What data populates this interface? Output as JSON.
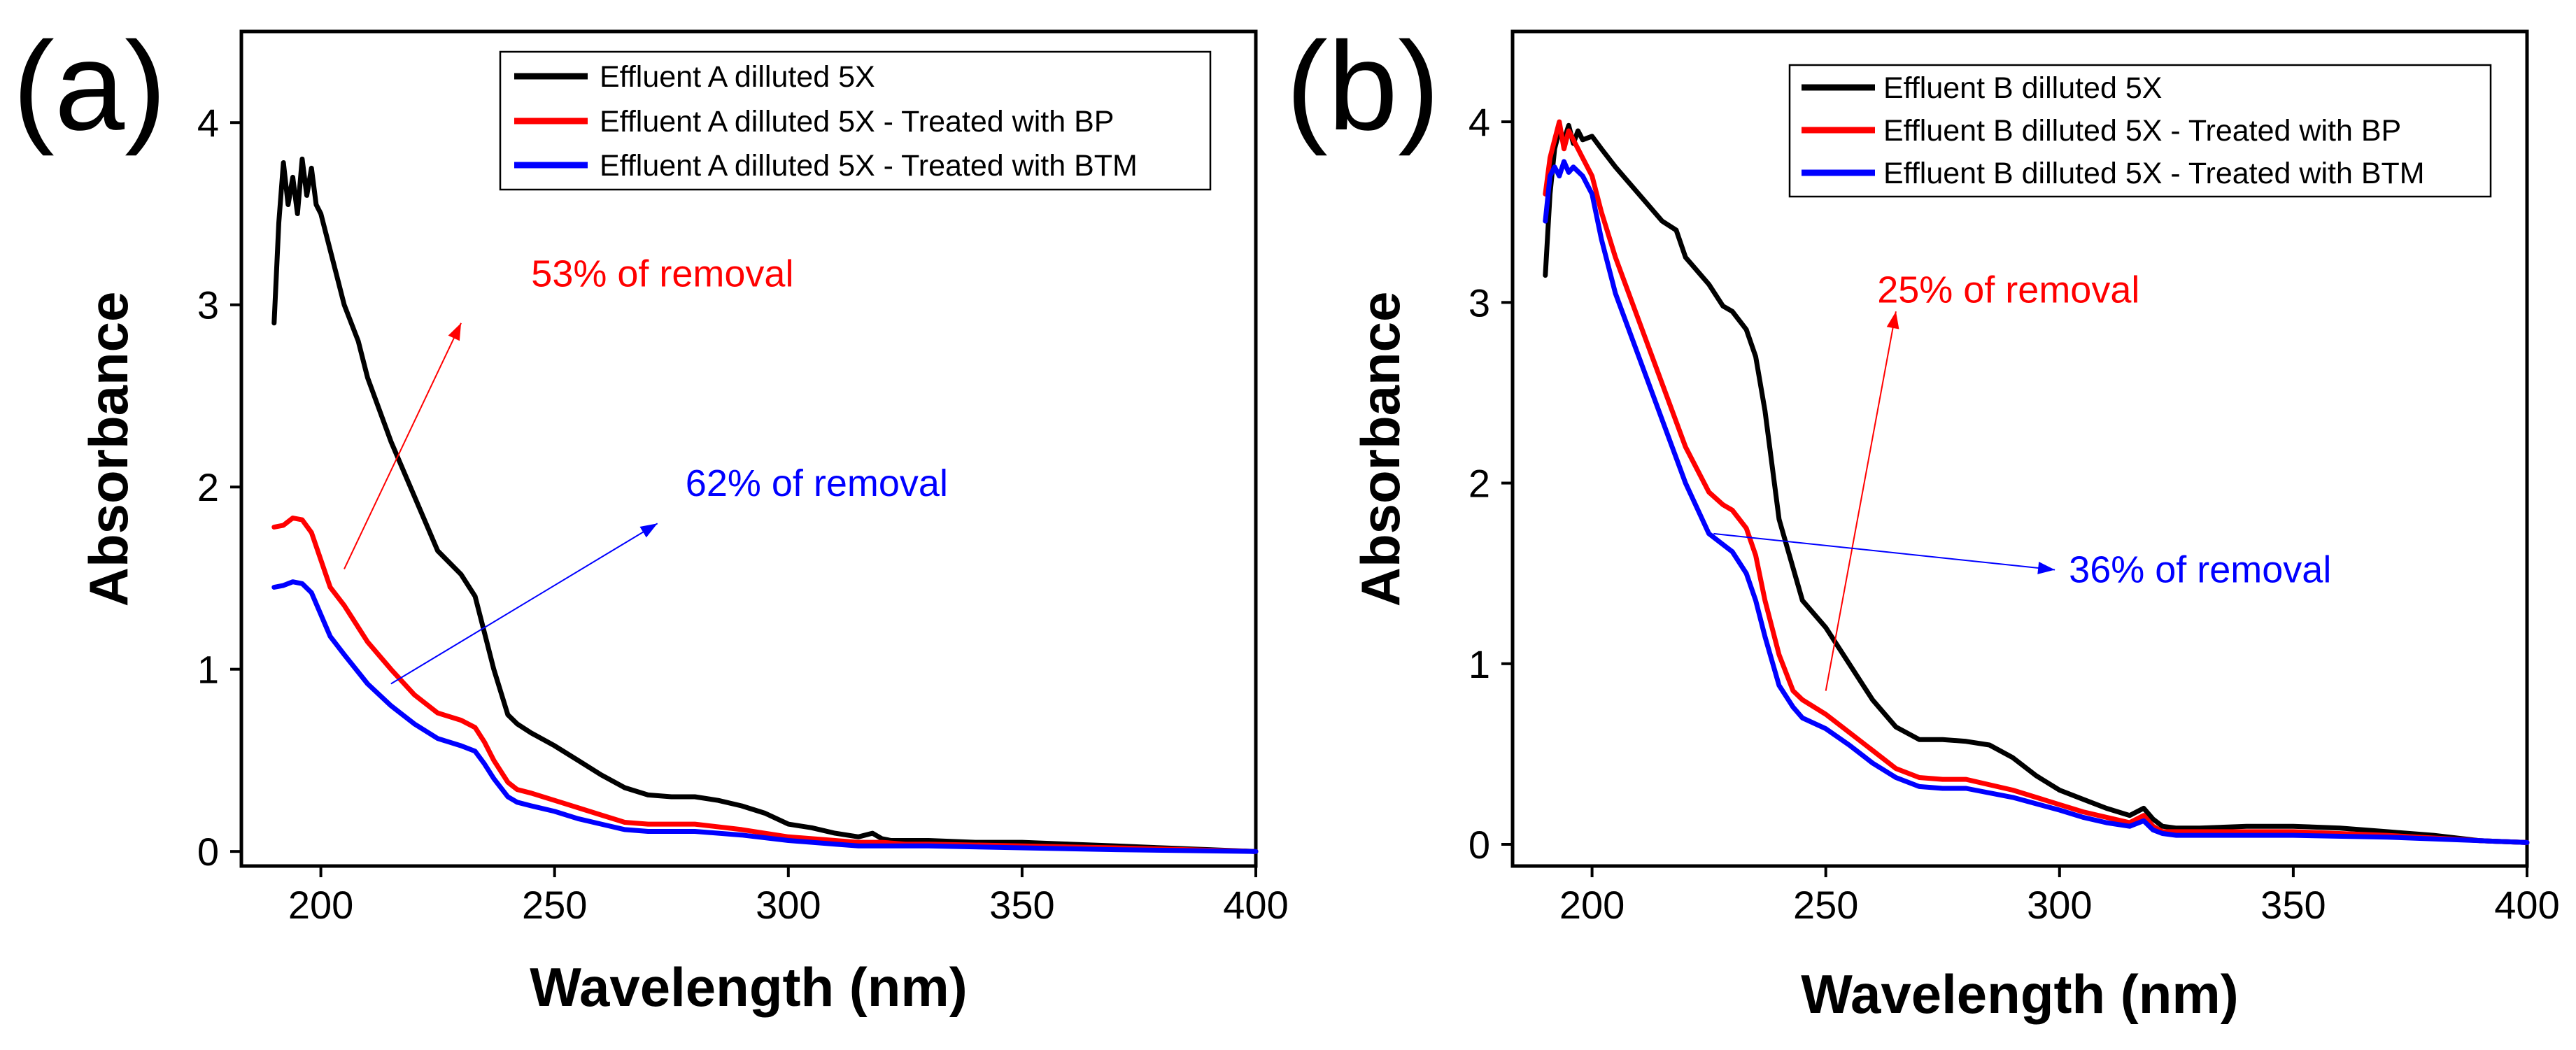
{
  "chart_data": [
    {
      "type": "line",
      "panel_label": "(a)",
      "xlabel": "Wavelength (nm)",
      "ylabel": "Absorbance",
      "xlim": [
        183,
        400
      ],
      "ylim": [
        -0.08,
        4.5
      ],
      "xticks": [
        200,
        250,
        300,
        350,
        400
      ],
      "yticks": [
        0,
        1,
        2,
        3,
        4
      ],
      "legend_position": "top-right",
      "series": [
        {
          "name": "Effluent A dilluted 5X",
          "color": "#000000",
          "x": [
            190,
            191,
            192,
            193,
            194,
            195,
            196,
            197,
            198,
            199,
            200,
            202,
            205,
            208,
            210,
            215,
            220,
            225,
            230,
            233,
            235,
            237,
            240,
            242,
            245,
            250,
            255,
            260,
            265,
            270,
            275,
            280,
            285,
            290,
            295,
            300,
            305,
            310,
            315,
            318,
            320,
            322,
            325,
            330,
            340,
            350,
            360,
            370,
            380,
            390,
            400
          ],
          "y": [
            2.9,
            3.45,
            3.78,
            3.55,
            3.7,
            3.5,
            3.8,
            3.6,
            3.75,
            3.55,
            3.5,
            3.3,
            3.0,
            2.8,
            2.6,
            2.25,
            1.95,
            1.65,
            1.52,
            1.4,
            1.2,
            1.0,
            0.75,
            0.7,
            0.65,
            0.58,
            0.5,
            0.42,
            0.35,
            0.31,
            0.3,
            0.3,
            0.28,
            0.25,
            0.21,
            0.15,
            0.13,
            0.1,
            0.08,
            0.1,
            0.07,
            0.06,
            0.06,
            0.06,
            0.05,
            0.05,
            0.04,
            0.03,
            0.02,
            0.01,
            0.0
          ]
        },
        {
          "name": "Effluent A dilluted 5X - Treated with BP",
          "color": "#ff0000",
          "x": [
            190,
            192,
            194,
            196,
            198,
            200,
            202,
            205,
            210,
            215,
            220,
            225,
            230,
            233,
            235,
            237,
            240,
            242,
            245,
            250,
            255,
            260,
            265,
            270,
            275,
            280,
            290,
            300,
            310,
            315,
            320,
            325,
            330,
            350,
            370,
            400
          ],
          "y": [
            1.78,
            1.79,
            1.83,
            1.82,
            1.75,
            1.6,
            1.45,
            1.35,
            1.15,
            1.0,
            0.86,
            0.76,
            0.72,
            0.68,
            0.6,
            0.5,
            0.38,
            0.34,
            0.32,
            0.28,
            0.24,
            0.2,
            0.16,
            0.15,
            0.15,
            0.15,
            0.12,
            0.08,
            0.06,
            0.05,
            0.05,
            0.04,
            0.04,
            0.03,
            0.02,
            0.0
          ]
        },
        {
          "name": "Effluent A dilluted 5X - Treated with BTM",
          "color": "#0000ff",
          "x": [
            190,
            192,
            194,
            196,
            198,
            200,
            202,
            205,
            210,
            215,
            220,
            225,
            230,
            233,
            235,
            237,
            240,
            242,
            245,
            250,
            255,
            260,
            265,
            270,
            275,
            280,
            290,
            300,
            310,
            315,
            320,
            325,
            330,
            350,
            370,
            400
          ],
          "y": [
            1.45,
            1.46,
            1.48,
            1.47,
            1.42,
            1.3,
            1.18,
            1.08,
            0.92,
            0.8,
            0.7,
            0.62,
            0.58,
            0.55,
            0.48,
            0.4,
            0.3,
            0.27,
            0.25,
            0.22,
            0.18,
            0.15,
            0.12,
            0.11,
            0.11,
            0.11,
            0.09,
            0.06,
            0.04,
            0.03,
            0.03,
            0.03,
            0.03,
            0.02,
            0.01,
            0.0
          ]
        }
      ],
      "annotations": [
        {
          "text": "53% of removal",
          "color": "#ff0000",
          "x": 245,
          "y": 3.1,
          "arrow_from": [
            205,
            1.55
          ],
          "arrow_to": [
            230,
            2.9
          ]
        },
        {
          "text": "62% of removal",
          "color": "#0000ff",
          "x": 278,
          "y": 1.95,
          "arrow_from": [
            215,
            0.92
          ],
          "arrow_to": [
            272,
            1.8
          ]
        }
      ]
    },
    {
      "type": "line",
      "panel_label": "(b)",
      "xlabel": "Wavelength (nm)",
      "ylabel": "Absorbance",
      "xlim": [
        183,
        400
      ],
      "ylim": [
        -0.12,
        4.5
      ],
      "xticks": [
        200,
        250,
        300,
        350,
        400
      ],
      "yticks": [
        0,
        1,
        2,
        3,
        4
      ],
      "legend_position": "top-right",
      "series": [
        {
          "name": "Effluent B dilluted 5X",
          "color": "#000000",
          "x": [
            190,
            191,
            192,
            193,
            194,
            195,
            196,
            197,
            198,
            200,
            202,
            205,
            210,
            215,
            218,
            220,
            225,
            228,
            230,
            233,
            235,
            237,
            240,
            245,
            250,
            255,
            260,
            265,
            270,
            275,
            280,
            285,
            290,
            295,
            300,
            305,
            310,
            315,
            318,
            320,
            322,
            325,
            330,
            340,
            350,
            360,
            370,
            380,
            390,
            400
          ],
          "y": [
            3.15,
            3.6,
            3.85,
            3.95,
            3.9,
            3.98,
            3.88,
            3.95,
            3.9,
            3.92,
            3.85,
            3.75,
            3.6,
            3.45,
            3.4,
            3.25,
            3.1,
            2.98,
            2.95,
            2.85,
            2.7,
            2.4,
            1.8,
            1.35,
            1.2,
            1.0,
            0.8,
            0.65,
            0.58,
            0.58,
            0.57,
            0.55,
            0.48,
            0.38,
            0.3,
            0.25,
            0.2,
            0.16,
            0.2,
            0.14,
            0.1,
            0.09,
            0.09,
            0.1,
            0.1,
            0.09,
            0.07,
            0.05,
            0.02,
            0.01
          ]
        },
        {
          "name": "Effluent B dilluted 5X - Treated with BP",
          "color": "#ff0000",
          "x": [
            190,
            191,
            192,
            193,
            194,
            195,
            196,
            198,
            200,
            202,
            205,
            210,
            215,
            220,
            225,
            228,
            230,
            233,
            235,
            237,
            240,
            243,
            245,
            250,
            255,
            260,
            265,
            270,
            275,
            280,
            290,
            300,
            305,
            310,
            315,
            318,
            320,
            322,
            325,
            330,
            340,
            350,
            370,
            390,
            400
          ],
          "y": [
            3.6,
            3.8,
            3.9,
            4.0,
            3.85,
            3.95,
            3.9,
            3.8,
            3.7,
            3.5,
            3.25,
            2.9,
            2.55,
            2.2,
            1.95,
            1.88,
            1.85,
            1.75,
            1.6,
            1.35,
            1.05,
            0.85,
            0.8,
            0.72,
            0.62,
            0.52,
            0.42,
            0.37,
            0.36,
            0.36,
            0.3,
            0.22,
            0.18,
            0.15,
            0.12,
            0.16,
            0.1,
            0.07,
            0.07,
            0.07,
            0.07,
            0.07,
            0.05,
            0.02,
            0.01
          ]
        },
        {
          "name": "Effluent B dilluted 5X - Treated with BTM",
          "color": "#0000ff",
          "x": [
            190,
            191,
            192,
            193,
            194,
            195,
            196,
            198,
            200,
            202,
            205,
            210,
            215,
            220,
            225,
            228,
            230,
            233,
            235,
            237,
            240,
            243,
            245,
            250,
            255,
            260,
            265,
            270,
            275,
            280,
            290,
            300,
            305,
            310,
            315,
            318,
            320,
            322,
            325,
            330,
            340,
            350,
            370,
            390,
            400
          ],
          "y": [
            3.45,
            3.7,
            3.75,
            3.7,
            3.78,
            3.72,
            3.75,
            3.7,
            3.6,
            3.35,
            3.05,
            2.7,
            2.35,
            2.0,
            1.72,
            1.66,
            1.62,
            1.5,
            1.35,
            1.15,
            0.88,
            0.76,
            0.7,
            0.64,
            0.55,
            0.45,
            0.37,
            0.32,
            0.31,
            0.31,
            0.26,
            0.19,
            0.15,
            0.12,
            0.1,
            0.13,
            0.08,
            0.06,
            0.05,
            0.05,
            0.05,
            0.05,
            0.04,
            0.02,
            0.01
          ]
        }
      ],
      "annotations": [
        {
          "text": "25% of removal",
          "color": "#ff0000",
          "x": 261,
          "y": 3.0,
          "arrow_from": [
            250,
            0.85
          ],
          "arrow_to": [
            265,
            2.95
          ]
        },
        {
          "text": "36% of removal",
          "color": "#0000ff",
          "x": 302,
          "y": 1.45,
          "arrow_from": [
            226,
            1.72
          ],
          "arrow_to": [
            299,
            1.52
          ]
        }
      ]
    }
  ]
}
